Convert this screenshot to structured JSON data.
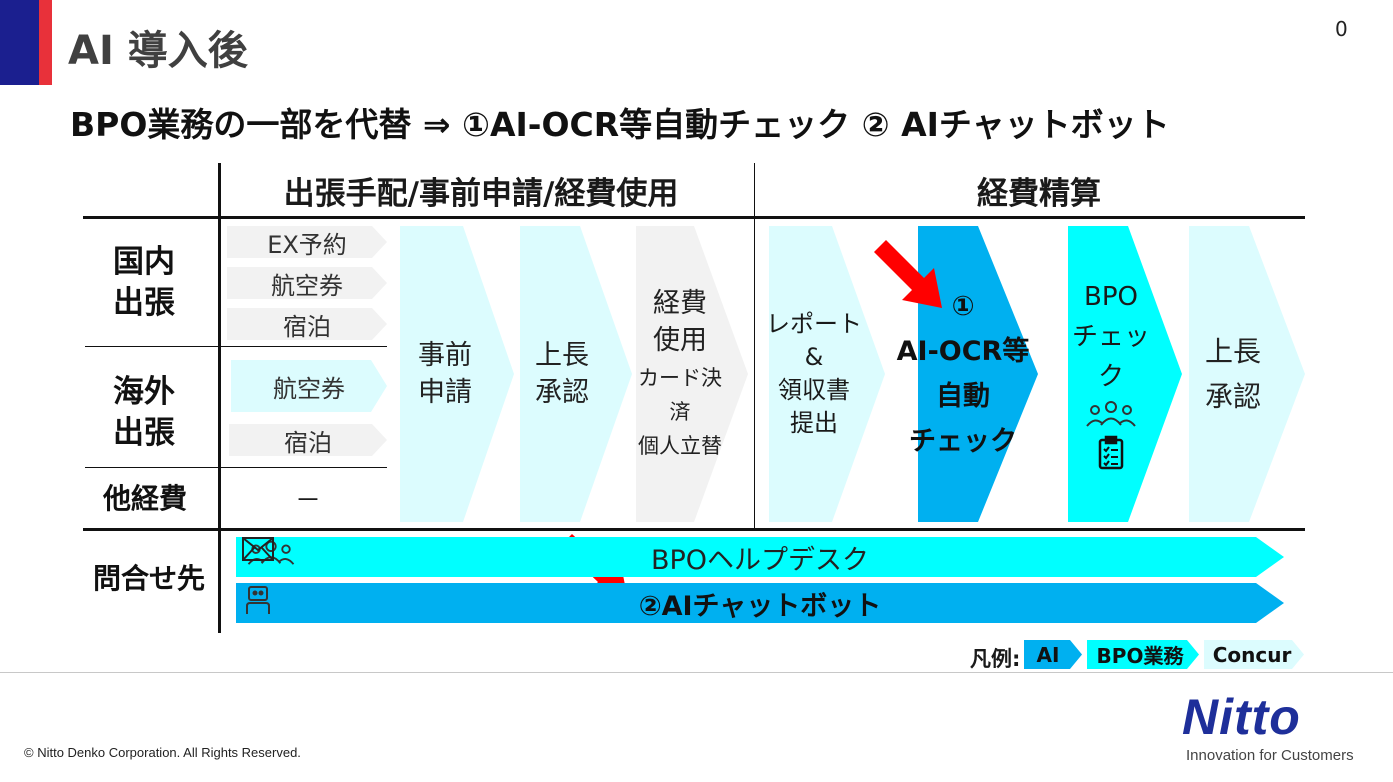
{
  "slide": {
    "page_number": "0",
    "title": "AI 導入後",
    "subtitle": "BPO業務の一部を代替 ⇒ ①AI-OCR等自動チェック ② AIチャットボット"
  },
  "table": {
    "header_left": "出張手配/事前申請/経費使用",
    "header_right": "経費精算",
    "rows": {
      "domestic": [
        "国内",
        "出張"
      ],
      "overseas": [
        "海外",
        "出張"
      ],
      "other": "他経費",
      "inquiry": "問合せ先"
    },
    "domestic_items": [
      "EX予約",
      "航空券",
      "宿泊"
    ],
    "overseas_items": [
      "航空券",
      "宿泊"
    ],
    "other_item": "－",
    "steps": {
      "pre_application": [
        "事前",
        "申請"
      ],
      "manager_approval_1": [
        "上長",
        "承認"
      ],
      "expense_use": [
        "経費",
        "使用"
      ],
      "expense_use_sub": [
        "カード決済",
        "個人立替"
      ],
      "report": [
        "レポート",
        "&",
        "領収書",
        "提出"
      ],
      "ai_check": [
        "①",
        "AI-OCR等",
        "自動",
        "チェック"
      ],
      "bpo_check": [
        "BPO",
        "チェック"
      ],
      "manager_approval_2": [
        "上長",
        "承認"
      ]
    },
    "helpdesk": "BPOヘルプデスク",
    "chatbot": "②AIチャットボット"
  },
  "legend": {
    "label": "凡例:",
    "items": [
      "AI",
      "BPO業務",
      "Concur"
    ]
  },
  "colors": {
    "ai": "#00b0f0",
    "bpo": "#00ffff",
    "concur": "#dcfcfe",
    "other": "#f2f2f2",
    "arrow": "#ff0000",
    "brand": "#1e2f9a"
  },
  "footer": {
    "copyright": "© Nitto Denko Corporation. All Rights Reserved.",
    "logo_text": "Nitto",
    "tagline": "Innovation for Customers"
  }
}
